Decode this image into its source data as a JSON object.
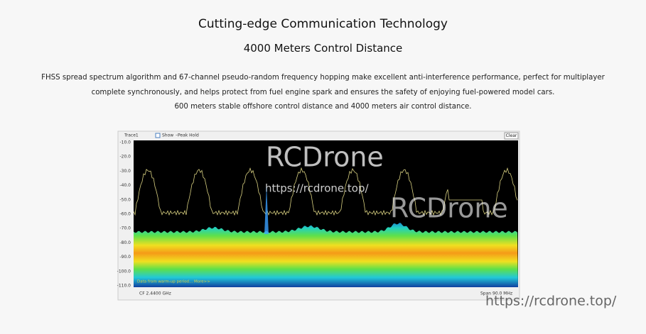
{
  "header": {
    "title": "Cutting-edge Communication Technology",
    "subtitle": "4000 Meters Control Distance"
  },
  "description": [
    "FHSS spread spectrum algorithm and 67-channel pseudo-random frequency hopping make excellent anti-interference performance, perfect for multiplayer",
    "complete synchronously, and helps protect from fuel engine spark and ensures the safety of enjoying fuel-powered model cars.",
    "600 meters stable offshore control distance and 4000 meters air control distance."
  ],
  "spectrum": {
    "trace": "Trace1",
    "show": "Show",
    "peak_hold": "–Peak Hold",
    "clear": "Clear",
    "y_axis_labels": [
      "-10.0",
      "-20.0",
      "-30.0",
      "-40.0",
      "-50.0",
      "-60.0",
      "-70.0",
      "-80.0",
      "-90.0",
      "-100.0",
      "-110.0"
    ],
    "note": "Data from warm-up period... More>>",
    "cf": "CF  2.4400 GHz",
    "span": "Span  90.0 MHz"
  },
  "watermarks": [
    "RCDrone",
    "https://rcdrone.top/",
    "RCDrone",
    "https://rcdrone.top/"
  ]
}
